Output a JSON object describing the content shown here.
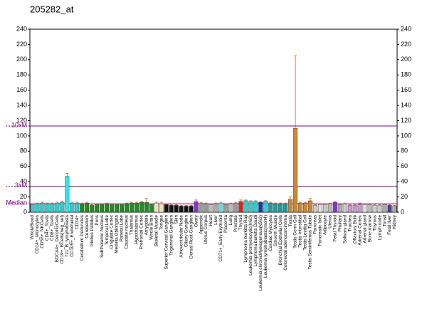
{
  "chart_data": {
    "type": "bar",
    "title": "205282_at",
    "categories": [
      "WholeBlood",
      "CD14+_Monocytes",
      "CD56+_NKCells",
      "CD4+_Tcells",
      "CD8+_Tcells",
      "BDCA4+_DentriticCells",
      "CD19+_BCells(neg_sel)",
      "721_B_lymphoblasts",
      "CD105+_Endothelial",
      "CD34+",
      "Cerebellum Peduncles",
      "Cerebellum",
      "Globus Pallidus",
      "Pons",
      "Subthalamic Nucleus",
      "Temporal Lobe",
      "Cingulate Cortex",
      "Medulla Oblongata",
      "Parietal Lobe",
      "Caudate nucleus",
      "Thalamus",
      "Hypothalamus",
      "Prefrontal Cortex",
      "Amygdala",
      "Whole Brain",
      "Skeletal Muscle",
      "Tongue",
      "Superior Cervical Ganglion",
      "Trigeminal Ganglion",
      "Skin",
      "Atrioventricular Node",
      "Ciliary Ganglion",
      "Dorsal Root Ganglion",
      "Ovary",
      "Appendix",
      "Uterus Corpus",
      "Heart",
      "Liver",
      "CD71+_Early Erythroid",
      "Placenta",
      "Lung",
      "Prostate",
      "Thyroid",
      "Lymphoma burkitts Raji",
      "Leukemia promyelocytic(hl60)",
      "Lymphoma burkitts Daudi",
      "Leukemia chronicMyelogenous(k562)",
      "Leukemia lymphoblastic(molt4)",
      "Cardiac Myocytes",
      "Smooth Muscle",
      "Bronchial Epithelial Cells",
      "Colorectal adenocarcinoma",
      "Testis",
      "Testis Germ Cell",
      "Testis Interstitial",
      "Testis Leydig Cell",
      "Testis Seminiferous Tubule",
      "Pancreas",
      "Pancreatic Islet",
      "Adipocyte",
      "Uterus",
      "Fetal Thyroid",
      "Pituitary",
      "Salivary gland",
      "Trachea",
      "Olfactory Bulb",
      "Adrenal Cortex",
      "Adrenal gland",
      "Bone marrow",
      "Thymus",
      "Lymph node",
      "Tonsil",
      "Fetal liver",
      "Kidney"
    ],
    "values": [
      10,
      11,
      12,
      11,
      11,
      12,
      13,
      47,
      12,
      12,
      11,
      12,
      9,
      10,
      10,
      11,
      10,
      10,
      10,
      11,
      12,
      12,
      13,
      13,
      10,
      12,
      11,
      10,
      9,
      9,
      8,
      8,
      8,
      14,
      12,
      11,
      10,
      11,
      12,
      10,
      11,
      12,
      14,
      15,
      14,
      14,
      13,
      14,
      12,
      11,
      11,
      11,
      17,
      110,
      12,
      12,
      15,
      9,
      10,
      10,
      11,
      13,
      10,
      11,
      9,
      9,
      10,
      10,
      10,
      9,
      9,
      10,
      9,
      8
    ],
    "errors": [
      1,
      1,
      1,
      1,
      1,
      1,
      1,
      4,
      1,
      1,
      1,
      1,
      1,
      1,
      1,
      1,
      1,
      1,
      1,
      1,
      1,
      1,
      1,
      5,
      1,
      1,
      2,
      1,
      1,
      1,
      1,
      1,
      1,
      2,
      1,
      1,
      1,
      1,
      1,
      1,
      1,
      1,
      2,
      1,
      1,
      1,
      1,
      1,
      1,
      1,
      1,
      1,
      3,
      95,
      1,
      1,
      3,
      1,
      1,
      1,
      1,
      1,
      1,
      1,
      1,
      1,
      2,
      1,
      1,
      1,
      1,
      1,
      1,
      1
    ],
    "colors": [
      "#33cccc",
      "#33cccc",
      "#33cccc",
      "#33cccc",
      "#33cccc",
      "#33cccc",
      "#33cccc",
      "#33e6e6",
      "#33cccc",
      "#33cccc",
      "#228b22",
      "#228b22",
      "#228b22",
      "#228b22",
      "#228b22",
      "#228b22",
      "#228b22",
      "#228b22",
      "#228b22",
      "#228b22",
      "#228b22",
      "#228b22",
      "#228b22",
      "#228b22",
      "#228b22",
      "#f0e0b8",
      "#f0e0b8",
      "#111111",
      "#111111",
      "#111111",
      "#111111",
      "#111111",
      "#111111",
      "#8833cc",
      "#999999",
      "#999999",
      "#bbbbbb",
      "#aaaaaa",
      "#66dddd",
      "#999999",
      "#bbbbbb",
      "#999999",
      "#dd2222",
      "#33cccc",
      "#33cccc",
      "#33cccc",
      "#2233aa",
      "#33cccc",
      "#229999",
      "#229999",
      "#229999",
      "#229999",
      "#cc8833",
      "#cc8833",
      "#cc8833",
      "#cc8833",
      "#cc8833",
      "#cccccc",
      "#dddddd",
      "#cccccc",
      "#bbbbbb",
      "#8833cc",
      "#aaaaaa",
      "#cccccc",
      "#cc99cc",
      "#cc99cc",
      "#cc99cc",
      "#dddddd",
      "#bbbbbb",
      "#cccccc",
      "#cccccc",
      "#aaaaaa",
      "#444488",
      "#aaaaaa"
    ],
    "error_color": "#cc5522",
    "ylim": [
      0,
      240
    ],
    "yticks": [
      0,
      20,
      40,
      60,
      80,
      100,
      120,
      140,
      160,
      180,
      200,
      220,
      240
    ],
    "reference_lines": [
      {
        "label": "10xM",
        "value": 113
      },
      {
        "label": "3xM",
        "value": 34
      },
      {
        "label": "Median",
        "value": 11
      }
    ],
    "reference_color": "#800080"
  }
}
